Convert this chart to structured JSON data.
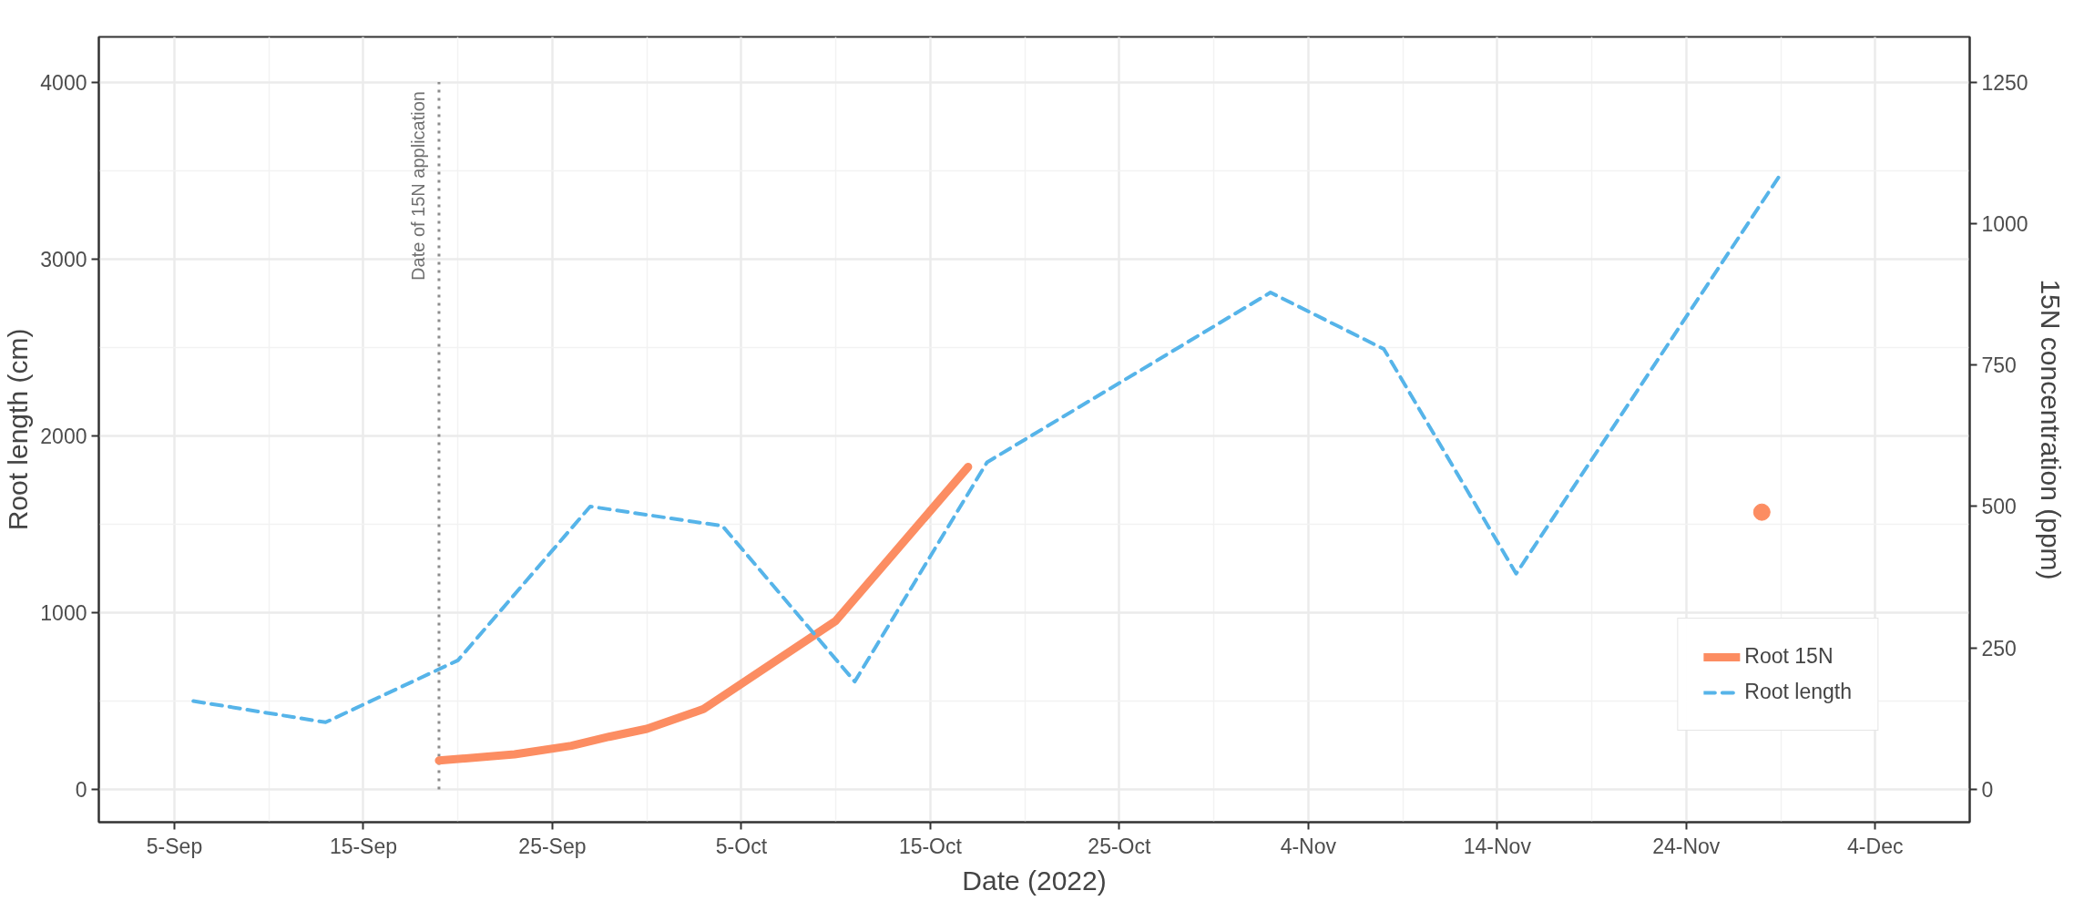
{
  "chart_data": {
    "type": "line",
    "xlabel": "Date (2022)",
    "ylabel": "Root length (cm)",
    "y2label": "15N concentration (ppm)",
    "xlim": [
      "2022-09-01",
      "2022-12-09"
    ],
    "xticks": [
      {
        "value": "2022-09-05",
        "label": "5-Sep"
      },
      {
        "value": "2022-09-15",
        "label": "15-Sep"
      },
      {
        "value": "2022-09-25",
        "label": "25-Sep"
      },
      {
        "value": "2022-10-05",
        "label": "5-Oct"
      },
      {
        "value": "2022-10-15",
        "label": "15-Oct"
      },
      {
        "value": "2022-10-25",
        "label": "25-Oct"
      },
      {
        "value": "2022-11-04",
        "label": "4-Nov"
      },
      {
        "value": "2022-11-14",
        "label": "14-Nov"
      },
      {
        "value": "2022-11-24",
        "label": "24-Nov"
      },
      {
        "value": "2022-12-04",
        "label": "4-Dec"
      }
    ],
    "ylim": [
      -185,
      4255
    ],
    "yticks": [
      0,
      1000,
      2000,
      3000,
      4000
    ],
    "y2lim": [
      -58,
      1330
    ],
    "y2ticks": [
      0,
      250,
      500,
      750,
      1000,
      1250
    ],
    "grid": true,
    "legend": "bottom right",
    "ref_lines": [
      {
        "axis": "x",
        "value": "2022-09-19",
        "label": "Date of 15N application",
        "color": "#8c8c8c",
        "line_style": "dotted"
      }
    ],
    "series": [
      {
        "name": "Root 15N",
        "color": "#fc8d62",
        "axis": "y2",
        "line_style": "solid",
        "x": [
          "2022-09-19",
          "2022-09-23",
          "2022-09-26",
          "2022-09-28",
          "2022-09-30",
          "2022-10-03",
          "2022-10-10",
          "2022-10-17",
          "2022-11-01",
          "2022-11-28"
        ],
        "values": [
          51,
          62,
          77,
          93,
          107,
          142,
          298,
          570,
          null,
          490
        ]
      },
      {
        "name": "Root length",
        "color": "#56b4e9",
        "line_style": "dashed",
        "x": [
          "2022-09-06",
          "2022-09-13",
          "2022-09-20",
          "2022-09-27",
          "2022-10-04",
          "2022-10-11",
          "2022-10-18",
          "2022-11-02",
          "2022-11-08",
          "2022-11-15",
          "2022-11-29"
        ],
        "values": [
          500,
          380,
          730,
          1600,
          1490,
          610,
          1850,
          2810,
          2490,
          1220,
          3480
        ]
      }
    ]
  }
}
